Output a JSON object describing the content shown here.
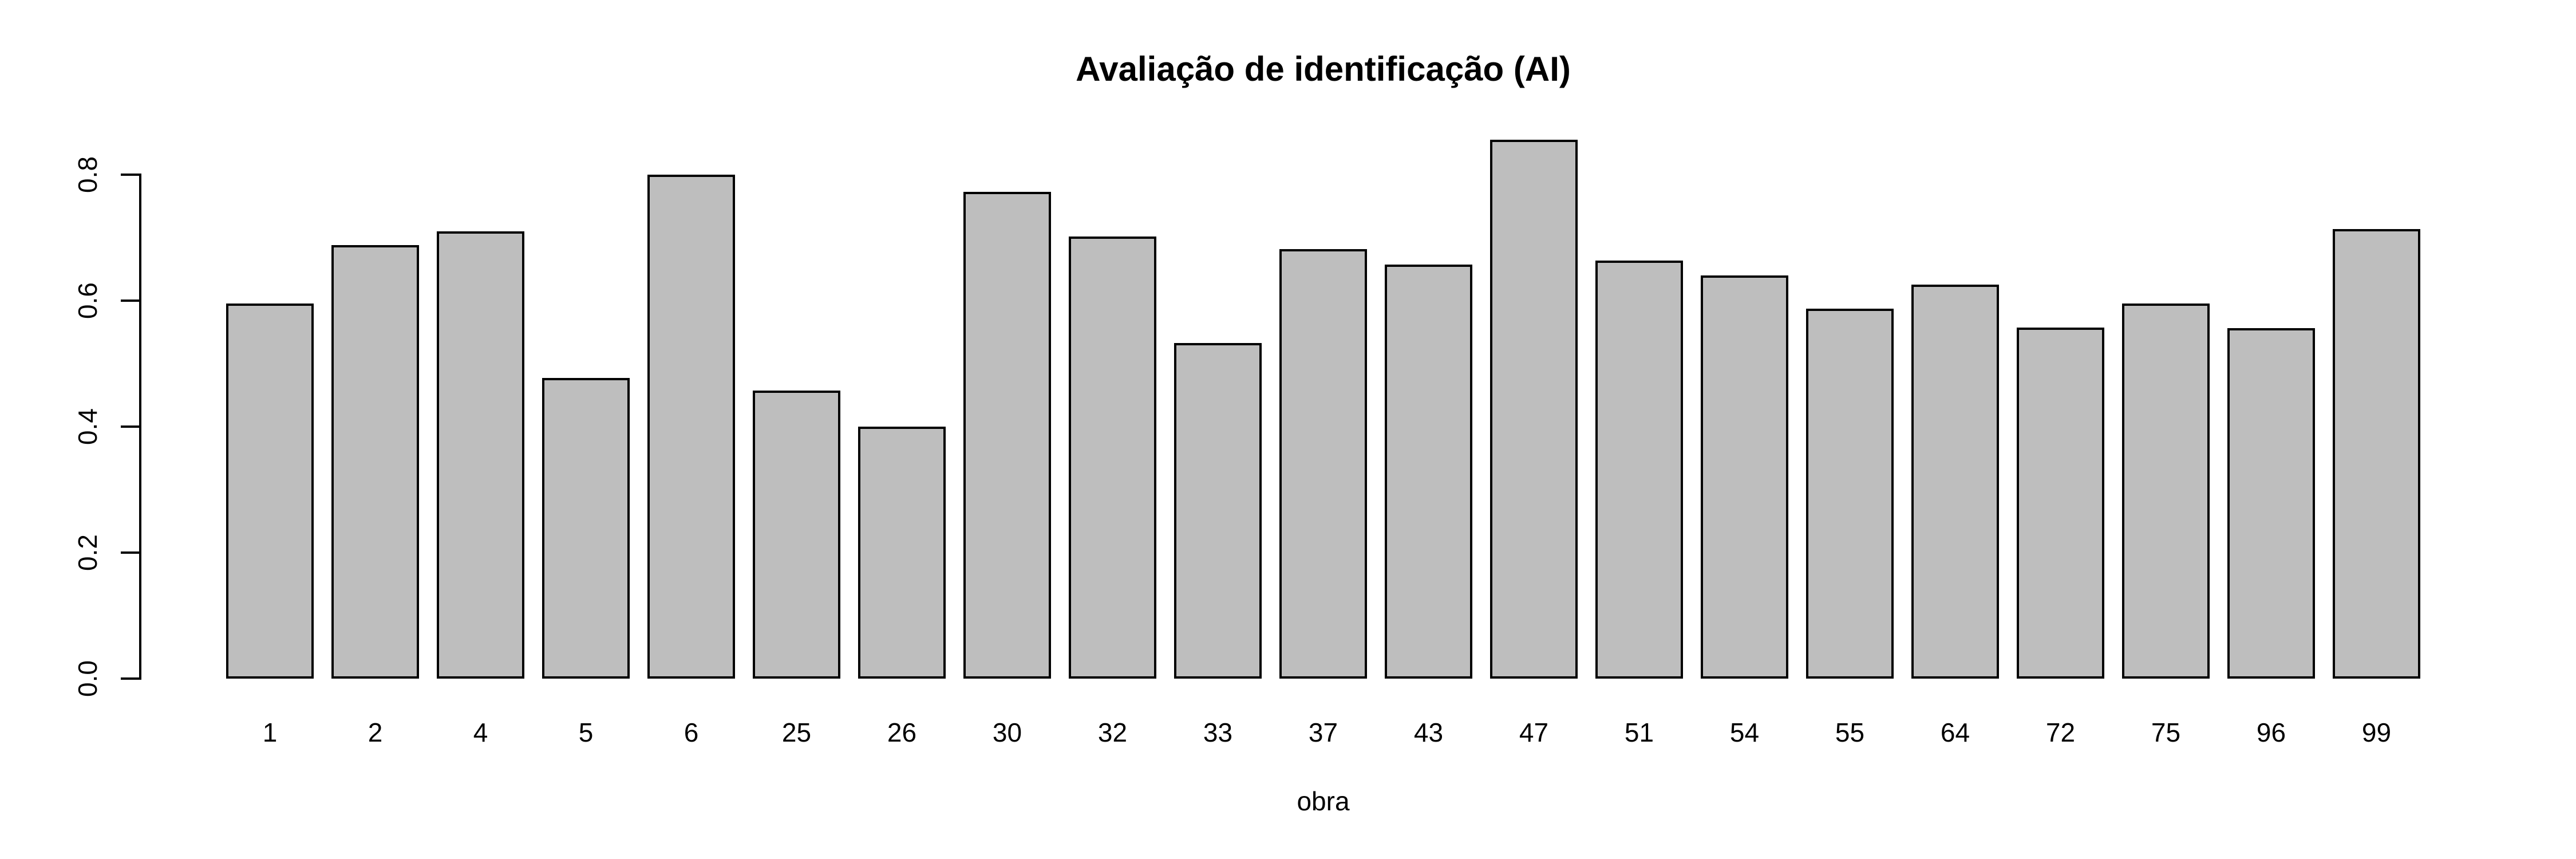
{
  "chart_data": {
    "type": "bar",
    "title": "Avaliação de identificação (AI)",
    "xlabel": "obra",
    "ylabel": "",
    "categories": [
      "1",
      "2",
      "4",
      "5",
      "6",
      "25",
      "26",
      "30",
      "32",
      "33",
      "37",
      "43",
      "47",
      "51",
      "54",
      "55",
      "64",
      "72",
      "75",
      "96",
      "99"
    ],
    "values": [
      0.595,
      0.688,
      0.71,
      0.477,
      0.8,
      0.457,
      0.4,
      0.773,
      0.702,
      0.533,
      0.682,
      0.657,
      0.855,
      0.664,
      0.64,
      0.587,
      0.625,
      0.557,
      0.595,
      0.556,
      0.714
    ],
    "y_ticks": [
      "0.0",
      "0.2",
      "0.4",
      "0.6",
      "0.8"
    ],
    "ylim": [
      0.0,
      0.868
    ],
    "grid": false,
    "legend": false,
    "bar_fill": "#BEBEBE",
    "bar_border": "#000000",
    "axis_color": "#000000"
  }
}
